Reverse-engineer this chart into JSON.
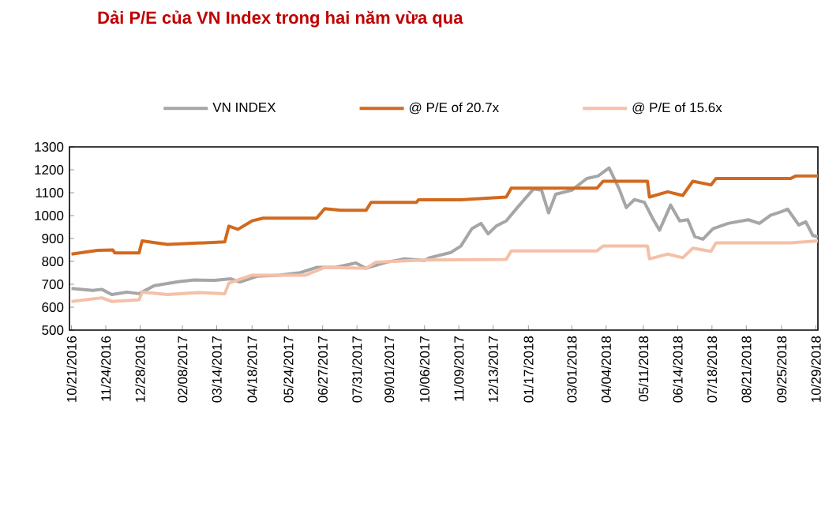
{
  "chart_data": {
    "type": "line",
    "title": "Dải P/E của VN Index trong hai năm vừa qua",
    "ylim": [
      500,
      1300
    ],
    "yticks": [
      500,
      600,
      700,
      800,
      900,
      1000,
      1100,
      1200,
      1300
    ],
    "xlim": [
      "2016-10-19",
      "2018-10-31"
    ],
    "xticks": [
      {
        "value": "2016-10-21",
        "label": "10/21/2016"
      },
      {
        "value": "2016-11-24",
        "label": "11/24/2016"
      },
      {
        "value": "2016-12-28",
        "label": "12/28/2016"
      },
      {
        "value": "2017-02-08",
        "label": "02/08/2017"
      },
      {
        "value": "2017-03-14",
        "label": "03/14/2017"
      },
      {
        "value": "2017-04-18",
        "label": "04/18/2017"
      },
      {
        "value": "2017-05-24",
        "label": "05/24/2017"
      },
      {
        "value": "2017-06-27",
        "label": "06/27/2017"
      },
      {
        "value": "2017-07-31",
        "label": "07/31/2017"
      },
      {
        "value": "2017-09-01",
        "label": "09/01/2017"
      },
      {
        "value": "2017-10-06",
        "label": "10/06/2017"
      },
      {
        "value": "2017-11-09",
        "label": "11/09/2017"
      },
      {
        "value": "2017-12-13",
        "label": "12/13/2017"
      },
      {
        "value": "2018-01-17",
        "label": "01/17/2018"
      },
      {
        "value": "2018-03-01",
        "label": "03/01/2018"
      },
      {
        "value": "2018-04-04",
        "label": "04/04/2018"
      },
      {
        "value": "2018-05-11",
        "label": "05/11/2018"
      },
      {
        "value": "2018-06-14",
        "label": "06/14/2018"
      },
      {
        "value": "2018-07-18",
        "label": "07/18/2018"
      },
      {
        "value": "2018-08-21",
        "label": "08/21/2018"
      },
      {
        "value": "2018-09-25",
        "label": "09/25/2018"
      },
      {
        "value": "2018-10-29",
        "label": "10/29/2018"
      }
    ],
    "legend": "top",
    "grid": false,
    "marker": "none",
    "line_style": "solid",
    "series": [
      {
        "name": "VN INDEX",
        "color": "#a6a6a6",
        "x": [
          "2016-10-21",
          "2016-11-11",
          "2016-11-20",
          "2016-11-30",
          "2016-12-15",
          "2016-12-27",
          "2017-01-11",
          "2017-02-05",
          "2017-02-20",
          "2017-03-12",
          "2017-03-28",
          "2017-04-06",
          "2017-04-23",
          "2017-05-15",
          "2017-06-05",
          "2017-06-21",
          "2017-07-10",
          "2017-07-30",
          "2017-08-09",
          "2017-08-30",
          "2017-09-16",
          "2017-10-06",
          "2017-10-11",
          "2017-11-01",
          "2017-11-11",
          "2017-11-22",
          "2017-12-01",
          "2017-12-08",
          "2017-12-16",
          "2017-12-26",
          "2018-01-06",
          "2018-01-22",
          "2018-01-30",
          "2018-02-06",
          "2018-02-13",
          "2018-03-01",
          "2018-03-16",
          "2018-03-27",
          "2018-04-07",
          "2018-04-17",
          "2018-04-24",
          "2018-05-02",
          "2018-05-12",
          "2018-05-20",
          "2018-05-27",
          "2018-06-07",
          "2018-06-16",
          "2018-06-24",
          "2018-07-01",
          "2018-07-09",
          "2018-07-19",
          "2018-08-03",
          "2018-08-23",
          "2018-09-03",
          "2018-09-14",
          "2018-09-24",
          "2018-10-01",
          "2018-10-12",
          "2018-10-19",
          "2018-10-26",
          "2018-10-31"
        ],
        "values": [
          682,
          673,
          678,
          655,
          666,
          659,
          694,
          712,
          719,
          717,
          724,
          710,
          735,
          740,
          751,
          774,
          774,
          793,
          770,
          797,
          811,
          804,
          816,
          839,
          867,
          943,
          966,
          920,
          954,
          977,
          1035,
          1116,
          1111,
          1012,
          1093,
          1111,
          1162,
          1173,
          1208,
          1116,
          1035,
          1070,
          1058,
          989,
          936,
          1046,
          977,
          982,
          908,
          897,
          943,
          966,
          982,
          966,
          1001,
          1016,
          1028,
          959,
          973,
          913,
          908
        ]
      },
      {
        "name": "@ P/E of 20.7x",
        "color": "#d2691e",
        "x": [
          "2016-10-21",
          "2016-11-16",
          "2016-12-01",
          "2016-12-03",
          "2016-12-27",
          "2016-12-30",
          "2017-01-24",
          "2017-03-22",
          "2017-03-26",
          "2017-04-04",
          "2017-04-18",
          "2017-04-29",
          "2017-06-21",
          "2017-06-29",
          "2017-07-15",
          "2017-08-09",
          "2017-08-14",
          "2017-09-28",
          "2017-09-30",
          "2017-11-11",
          "2017-12-26",
          "2017-12-31",
          "2018-03-26",
          "2018-04-01",
          "2018-05-15",
          "2018-05-17",
          "2018-06-04",
          "2018-06-19",
          "2018-06-29",
          "2018-07-17",
          "2018-07-22",
          "2018-10-04",
          "2018-10-09",
          "2018-10-31"
        ],
        "values": [
          832,
          848,
          850,
          837,
          837,
          890,
          874,
          885,
          954,
          940,
          977,
          989,
          989,
          1030,
          1023,
          1023,
          1058,
          1058,
          1069,
          1069,
          1081,
          1120,
          1120,
          1150,
          1150,
          1081,
          1104,
          1088,
          1150,
          1134,
          1162,
          1162,
          1173,
          1173
        ]
      },
      {
        "name": "@ P/E of 15.6x",
        "color": "#f4c0a8",
        "x": [
          "2016-10-21",
          "2016-11-20",
          "2016-11-30",
          "2016-12-27",
          "2016-12-30",
          "2017-01-24",
          "2017-02-23",
          "2017-03-22",
          "2017-03-26",
          "2017-04-04",
          "2017-04-18",
          "2017-06-10",
          "2017-06-29",
          "2017-08-09",
          "2017-08-19",
          "2017-10-06",
          "2017-12-26",
          "2017-12-31",
          "2018-03-26",
          "2018-04-01",
          "2018-05-15",
          "2018-05-17",
          "2018-06-04",
          "2018-06-19",
          "2018-06-29",
          "2018-07-17",
          "2018-07-22",
          "2018-10-04",
          "2018-10-31"
        ],
        "values": [
          625,
          641,
          625,
          632,
          666,
          655,
          664,
          659,
          705,
          719,
          740,
          740,
          774,
          770,
          797,
          806,
          809,
          846,
          846,
          867,
          867,
          811,
          832,
          816,
          858,
          844,
          881,
          881,
          890
        ]
      }
    ]
  }
}
